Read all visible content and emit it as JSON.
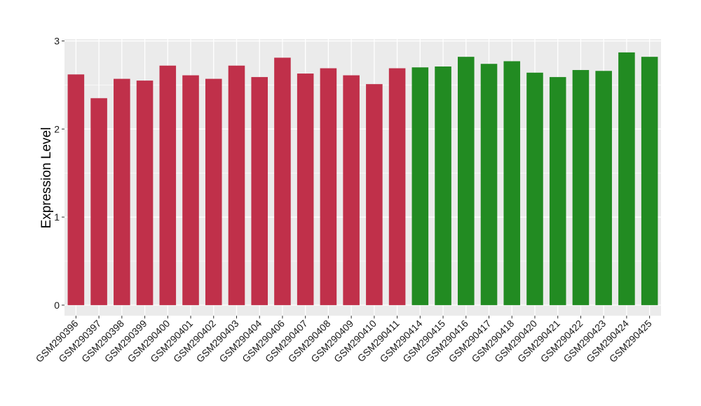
{
  "chart_data": {
    "type": "bar",
    "title": "",
    "xlabel": "",
    "ylabel": "Expression Level",
    "ylim": [
      -0.12,
      3.02
    ],
    "yticks": [
      0,
      1,
      2,
      3
    ],
    "grid": true,
    "panel_background": "#ebebeb",
    "grid_color": "#ffffff",
    "categories": [
      "GSM290396",
      "GSM290397",
      "GSM290398",
      "GSM290399",
      "GSM290400",
      "GSM290401",
      "GSM290402",
      "GSM290403",
      "GSM290404",
      "GSM290406",
      "GSM290407",
      "GSM290408",
      "GSM290409",
      "GSM290410",
      "GSM290411",
      "GSM290414",
      "GSM290415",
      "GSM290416",
      "GSM290417",
      "GSM290418",
      "GSM290420",
      "GSM290421",
      "GSM290422",
      "GSM290423",
      "GSM290424",
      "GSM290425"
    ],
    "values": [
      2.62,
      2.35,
      2.57,
      2.55,
      2.72,
      2.61,
      2.57,
      2.72,
      2.59,
      2.81,
      2.63,
      2.69,
      2.61,
      2.51,
      2.69,
      2.7,
      2.71,
      2.82,
      2.74,
      2.77,
      2.64,
      2.59,
      2.67,
      2.66,
      2.87,
      2.82
    ],
    "bar_colors": [
      "#c0304a",
      "#c0304a",
      "#c0304a",
      "#c0304a",
      "#c0304a",
      "#c0304a",
      "#c0304a",
      "#c0304a",
      "#c0304a",
      "#c0304a",
      "#c0304a",
      "#c0304a",
      "#c0304a",
      "#c0304a",
      "#c0304a",
      "#228b22",
      "#228b22",
      "#228b22",
      "#228b22",
      "#228b22",
      "#228b22",
      "#228b22",
      "#228b22",
      "#228b22",
      "#228b22",
      "#228b22"
    ]
  }
}
